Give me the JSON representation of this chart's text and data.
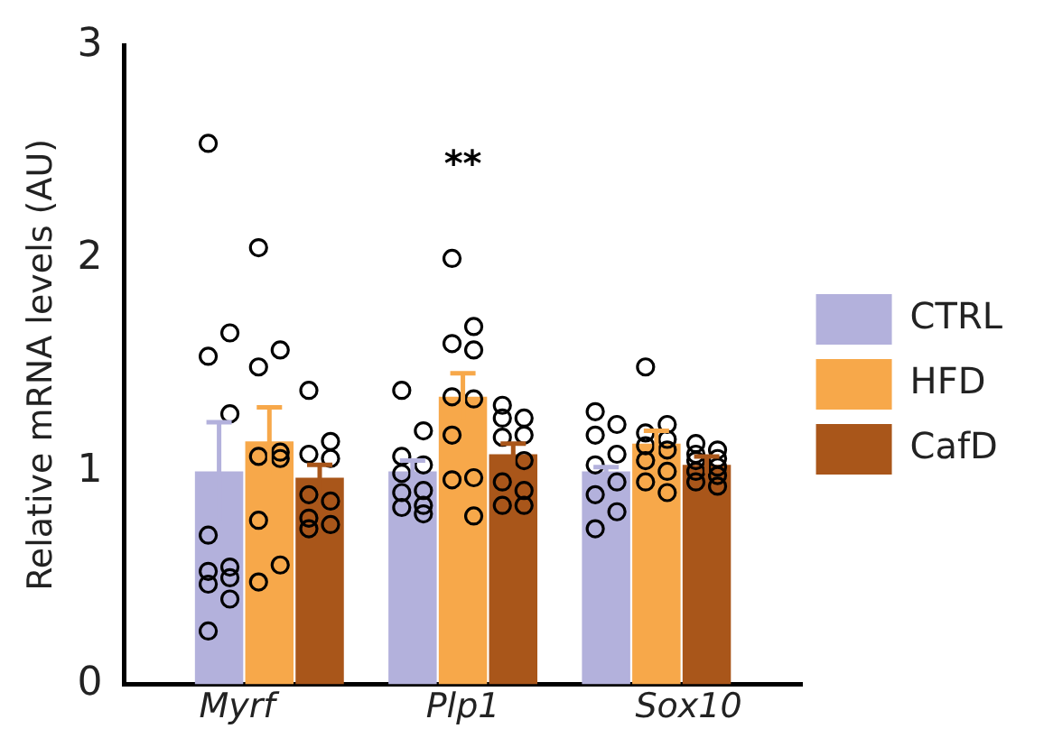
{
  "chart_data": {
    "type": "bar",
    "ylabel": "Relative mRNA levels (AU)",
    "categories": [
      "Myrf",
      "Plp1",
      "Sox10"
    ],
    "ylim": [
      0,
      3
    ],
    "yticks": [
      0,
      1,
      2,
      3
    ],
    "grid": false,
    "legend": "right",
    "series": [
      {
        "name": "CTRL",
        "color": "#b3b1dc",
        "values": [
          1.0,
          1.0,
          1.0
        ],
        "errors": [
          0.23,
          0.05,
          0.02
        ]
      },
      {
        "name": "HFD",
        "color": "#f7a84a",
        "values": [
          1.14,
          1.35,
          1.13
        ],
        "errors": [
          0.16,
          0.11,
          0.06
        ]
      },
      {
        "name": "CafD",
        "color": "#a9561a",
        "values": [
          0.97,
          1.08,
          1.03
        ],
        "errors": [
          0.06,
          0.05,
          0.04
        ]
      },
      {
        "type": "scatter",
        "color": "#000000",
        "x": [
          "Myrf",
          "Myrf",
          "Myrf",
          "Myrf",
          "Myrf",
          "Myrf",
          "Myrf",
          "Myrf",
          "Myrf",
          "Myrf",
          "Myrf",
          "Plp1",
          "Plp1",
          "Plp1",
          "Plp1",
          "Plp1",
          "Plp1",
          "Plp1",
          "Plp1",
          "Plp1",
          "Plp1",
          "Sox10",
          "Sox10",
          "Sox10",
          "Sox10",
          "Sox10",
          "Sox10",
          "Sox10",
          "Sox10",
          "Sox10"
        ],
        "values": [
          2.54,
          1.65,
          1.54,
          1.27,
          0.7,
          0.55,
          0.53,
          0.5,
          0.47,
          0.4,
          0.25,
          1.38,
          1.19,
          1.07,
          1.03,
          0.99,
          0.91,
          0.9,
          0.84,
          0.83,
          0.8,
          1.28,
          1.22,
          1.17,
          1.08,
          1.03,
          0.95,
          0.89,
          0.81,
          0.73
        ]
      },
      {
        "type": "scatter",
        "color": "#000000",
        "x": [
          "Myrf",
          "Myrf",
          "Myrf",
          "Myrf",
          "Myrf",
          "Myrf",
          "Myrf",
          "Myrf",
          "Myrf",
          "Plp1",
          "Plp1",
          "Plp1",
          "Plp1",
          "Plp1",
          "Plp1",
          "Plp1",
          "Plp1",
          "Plp1",
          "Plp1",
          "Sox10",
          "Sox10",
          "Sox10",
          "Sox10",
          "Sox10",
          "Sox10",
          "Sox10",
          "Sox10",
          "Sox10",
          "Sox10"
        ],
        "values": [
          2.05,
          1.57,
          1.49,
          1.09,
          1.07,
          1.06,
          0.77,
          0.56,
          0.48,
          2.0,
          1.68,
          1.6,
          1.57,
          1.35,
          1.34,
          1.17,
          0.97,
          0.96,
          0.79,
          1.49,
          1.22,
          1.18,
          1.15,
          1.12,
          1.1,
          1.05,
          1.0,
          0.95,
          0.9
        ]
      },
      {
        "type": "scatter",
        "color": "#000000",
        "x": [
          "Myrf",
          "Myrf",
          "Myrf",
          "Myrf",
          "Myrf",
          "Myrf",
          "Myrf",
          "Myrf",
          "Myrf",
          "Plp1",
          "Plp1",
          "Plp1",
          "Plp1",
          "Plp1",
          "Plp1",
          "Plp1",
          "Plp1",
          "Plp1",
          "Plp1",
          "Sox10",
          "Sox10",
          "Sox10",
          "Sox10",
          "Sox10",
          "Sox10",
          "Sox10",
          "Sox10",
          "Sox10",
          "Sox10"
        ],
        "values": [
          1.38,
          1.14,
          1.08,
          1.06,
          0.89,
          0.86,
          0.78,
          0.75,
          0.73,
          1.31,
          1.25,
          1.25,
          1.17,
          1.16,
          1.05,
          0.95,
          0.91,
          0.84,
          0.84,
          1.13,
          1.1,
          1.08,
          1.06,
          1.05,
          1.02,
          1.0,
          0.98,
          0.95,
          0.93
        ]
      }
    ],
    "annotations": [
      "**"
    ]
  }
}
